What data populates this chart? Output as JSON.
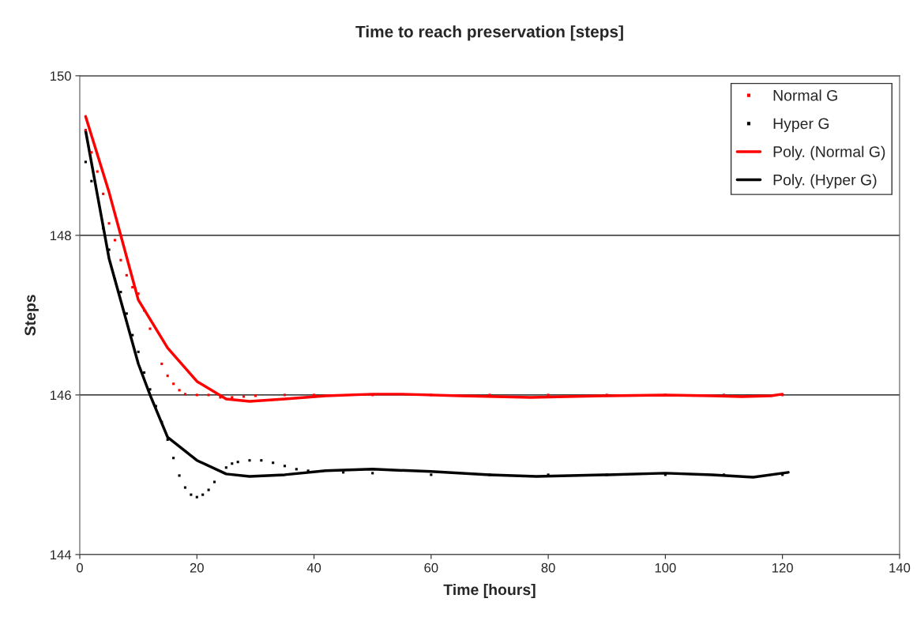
{
  "chart_data": {
    "type": "scatter",
    "title": "Time to reach preservation [steps]",
    "xlabel": "Time [hours]",
    "ylabel": "Steps",
    "xlim": [
      0,
      140
    ],
    "xticks": [
      0,
      20,
      40,
      60,
      80,
      100,
      120,
      140
    ],
    "ylim": [
      144,
      150
    ],
    "yticks": [
      144,
      146,
      148,
      150
    ],
    "grid": "y",
    "legend": "top right",
    "series": [
      {
        "name": "Normal G",
        "marker": "square",
        "color": "#ff0000",
        "x": [
          1,
          2,
          3,
          4,
          5,
          6,
          7,
          8,
          9,
          10,
          11,
          12,
          14,
          15,
          16,
          17,
          18,
          20,
          22,
          24,
          26,
          28,
          30,
          35,
          40,
          50,
          60,
          70,
          80,
          90,
          100,
          110,
          120
        ],
        "values": [
          149.32,
          149.04,
          148.8,
          148.52,
          148.15,
          147.94,
          147.69,
          147.5,
          147.35,
          147.27,
          147.06,
          146.83,
          146.39,
          146.24,
          146.14,
          146.06,
          146.01,
          146.0,
          146.0,
          145.97,
          145.97,
          145.98,
          145.99,
          146.0,
          146.0,
          146.0,
          146.0,
          146.0,
          146.0,
          146.0,
          146.0,
          146.0,
          146.0
        ]
      },
      {
        "name": "Hyper G",
        "marker": "square",
        "color": "#000000",
        "x": [
          1,
          2,
          4,
          5,
          6,
          7,
          8,
          9,
          10,
          11,
          12,
          13,
          14,
          15,
          16,
          17,
          18,
          19,
          20,
          21,
          22,
          23,
          25,
          26,
          27,
          29,
          31,
          33,
          35,
          37,
          39,
          45,
          50,
          60,
          70,
          80,
          90,
          100,
          110,
          120
        ],
        "values": [
          148.92,
          148.68,
          148.09,
          147.82,
          147.45,
          147.29,
          147.02,
          146.75,
          146.54,
          146.28,
          146.07,
          145.86,
          145.66,
          145.44,
          145.21,
          144.99,
          144.84,
          144.75,
          144.72,
          144.75,
          144.81,
          144.91,
          145.09,
          145.14,
          145.16,
          145.18,
          145.18,
          145.15,
          145.11,
          145.07,
          145.05,
          145.03,
          145.02,
          145.0,
          145.0,
          145.0,
          145.0,
          145.0,
          145.0,
          145.0
        ]
      },
      {
        "name": "Poly. (Normal G)",
        "type": "line",
        "marker": "none",
        "color": "#ff0000",
        "x": [
          1,
          5,
          10,
          15,
          20,
          25,
          29,
          35,
          42,
          50,
          55,
          65,
          77,
          90,
          100,
          108,
          113,
          118,
          120
        ],
        "values": [
          149.49,
          148.54,
          147.19,
          146.59,
          146.17,
          145.95,
          145.92,
          145.95,
          145.99,
          146.01,
          146.01,
          145.99,
          145.97,
          145.99,
          146.0,
          145.99,
          145.98,
          145.99,
          146.01
        ]
      },
      {
        "name": "Poly. (Hyper G)",
        "type": "line",
        "marker": "none",
        "color": "#000000",
        "x": [
          1,
          5,
          10,
          12,
          15,
          20,
          25,
          29,
          35,
          42,
          50,
          60,
          70,
          78,
          90,
          100,
          108,
          115,
          121
        ],
        "values": [
          149.31,
          147.71,
          146.39,
          146.0,
          145.47,
          145.18,
          145.01,
          144.98,
          145.0,
          145.05,
          145.07,
          145.04,
          145.0,
          144.98,
          145.0,
          145.02,
          145.0,
          144.97,
          145.03
        ]
      }
    ]
  }
}
